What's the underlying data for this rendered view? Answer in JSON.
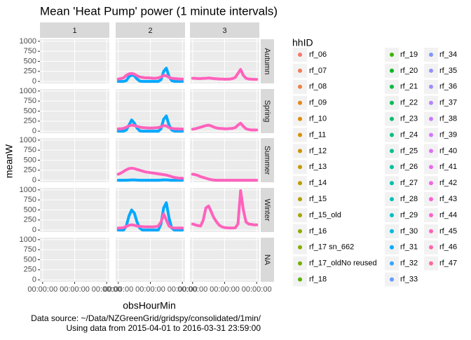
{
  "chart_data": {
    "type": "line",
    "title": "Mean 'Heat Pump' power (1 minute intervals)",
    "x_label": "obsHourMin",
    "y_label": "meanW",
    "caption": [
      "Data source: ~/Data/NZGreenGrid/gridspy/consolidated/1min/",
      "Using data from 2015-04-01 to 2016-03-31 23:59:00"
    ],
    "legend_title": "hhID",
    "col_facets": [
      "1",
      "2",
      "3"
    ],
    "row_facets": [
      "Autumn",
      "Spring",
      "Summer",
      "Winter",
      "NA"
    ],
    "xlim": [
      -1,
      25
    ],
    "xticks": [
      {
        "value": 0,
        "label": "00:00:00"
      },
      {
        "value": 12,
        "label": "00:00:00"
      },
      {
        "value": 24,
        "label": "00:00:00"
      }
    ],
    "ylim": [
      -50,
      1050
    ],
    "yticks": [
      0,
      250,
      500,
      750,
      1000
    ],
    "grid": true,
    "x": [
      0,
      1,
      2,
      3,
      4,
      5,
      6,
      7,
      8,
      9,
      10,
      11,
      12,
      13,
      14,
      15,
      16,
      17,
      18,
      19,
      20,
      21,
      22,
      23,
      24
    ],
    "series": [
      {
        "name": "rf_06",
        "color": "#F8766D"
      },
      {
        "name": "rf_07",
        "color": "#F37B59"
      },
      {
        "name": "rf_08",
        "color": "#ED8141"
      },
      {
        "name": "rf_09",
        "color": "#E7861B"
      },
      {
        "name": "rf_10",
        "color": "#E08B00"
      },
      {
        "name": "rf_11",
        "color": "#D89000"
      },
      {
        "name": "rf_12",
        "color": "#CF9400"
      },
      {
        "name": "rf_13",
        "color": "#C59900"
      },
      {
        "name": "rf_14",
        "color": "#BB9D00"
      },
      {
        "name": "rf_15",
        "color": "#AFA100"
      },
      {
        "name": "rf_15_old",
        "color": "#A3A500"
      },
      {
        "name": "rf_16",
        "color": "#95A900"
      },
      {
        "name": "rf_17 sn_662",
        "color": "#85AD00"
      },
      {
        "name": "rf_17_oldNo reused",
        "color": "#72B000"
      },
      {
        "name": "rf_18",
        "color": "#5BB300"
      },
      {
        "name": "rf_19",
        "color": "#39B600"
      },
      {
        "name": "rf_20",
        "color": "#00B81F"
      },
      {
        "name": "rf_21",
        "color": "#00BA42"
      },
      {
        "name": "rf_22",
        "color": "#00BC59"
      },
      {
        "name": "rf_23",
        "color": "#00BE6C"
      },
      {
        "name": "rf_24",
        "color": "#00BF7D"
      },
      {
        "name": "rf_25",
        "color": "#00C08D"
      },
      {
        "name": "rf_26",
        "color": "#00C19C"
      },
      {
        "name": "rf_27",
        "color": "#00C1AA"
      },
      {
        "name": "rf_28",
        "color": "#00C0B8"
      },
      {
        "name": "rf_29",
        "color": "#00BFC4"
      },
      {
        "name": "rf_30",
        "color": "#00BBDC"
      },
      {
        "name": "rf_31",
        "color": "#00A9FF"
      },
      {
        "name": "rf_32",
        "color": "#35A2FF"
      },
      {
        "name": "rf_33",
        "color": "#619CFF"
      },
      {
        "name": "rf_34",
        "color": "#7F96FF"
      },
      {
        "name": "rf_35",
        "color": "#9590FF"
      },
      {
        "name": "rf_36",
        "color": "#A58AFF"
      },
      {
        "name": "rf_37",
        "color": "#B983FF"
      },
      {
        "name": "rf_38",
        "color": "#C77CFF"
      },
      {
        "name": "rf_39",
        "color": "#D575FE"
      },
      {
        "name": "rf_40",
        "color": "#E06EF8"
      },
      {
        "name": "rf_41",
        "color": "#EB69F0"
      },
      {
        "name": "rf_42",
        "color": "#F564E3"
      },
      {
        "name": "rf_43",
        "color": "#FB61D7"
      },
      {
        "name": "rf_44",
        "color": "#FF61CC"
      },
      {
        "name": "rf_45",
        "color": "#FF62BC"
      },
      {
        "name": "rf_46",
        "color": "#FF65AC"
      },
      {
        "name": "rf_47",
        "color": "#FF6A98"
      }
    ],
    "panels": [
      {
        "column": "2",
        "row": "Autumn",
        "lines": [
          {
            "series": "rf_31",
            "values": [
              0,
              0,
              0,
              20,
              120,
              160,
              140,
              60,
              10,
              0,
              0,
              0,
              0,
              0,
              0,
              0,
              40,
              250,
              330,
              120,
              20,
              0,
              0,
              0,
              0
            ]
          },
          {
            "series": "rf_45",
            "values": [
              60,
              70,
              90,
              150,
              190,
              200,
              180,
              140,
              110,
              100,
              90,
              90,
              85,
              80,
              80,
              90,
              110,
              150,
              140,
              100,
              80,
              70,
              65,
              60,
              60
            ]
          }
        ]
      },
      {
        "column": "3",
        "row": "Autumn",
        "lines": [
          {
            "series": "rf_45",
            "values": [
              80,
              75,
              70,
              70,
              75,
              80,
              85,
              80,
              70,
              65,
              60,
              60,
              55,
              55,
              60,
              70,
              100,
              200,
              300,
              150,
              80,
              60,
              55,
              50,
              50
            ]
          }
        ]
      },
      {
        "column": "2",
        "row": "Spring",
        "lines": [
          {
            "series": "rf_31",
            "values": [
              0,
              0,
              0,
              30,
              150,
              280,
              200,
              80,
              10,
              0,
              0,
              0,
              0,
              0,
              0,
              0,
              60,
              300,
              380,
              150,
              30,
              0,
              0,
              0,
              0
            ]
          },
          {
            "series": "rf_45",
            "values": [
              60,
              60,
              70,
              100,
              130,
              150,
              140,
              120,
              100,
              90,
              85,
              80,
              80,
              80,
              85,
              90,
              110,
              140,
              130,
              90,
              70,
              60,
              60,
              55,
              55
            ]
          }
        ]
      },
      {
        "column": "3",
        "row": "Spring",
        "lines": [
          {
            "series": "rf_45",
            "values": [
              50,
              60,
              80,
              100,
              120,
              140,
              150,
              130,
              100,
              80,
              70,
              65,
              60,
              60,
              65,
              70,
              90,
              150,
              200,
              120,
              60,
              40,
              30,
              30,
              30
            ]
          }
        ]
      },
      {
        "column": "2",
        "row": "Summer",
        "lines": [
          {
            "series": "rf_31",
            "values": [
              0,
              0,
              0,
              0,
              5,
              10,
              10,
              5,
              0,
              0,
              0,
              0,
              0,
              0,
              0,
              0,
              5,
              10,
              10,
              5,
              0,
              0,
              0,
              0,
              0
            ]
          },
          {
            "series": "rf_45",
            "values": [
              150,
              180,
              220,
              260,
              290,
              300,
              290,
              270,
              250,
              230,
              210,
              200,
              190,
              180,
              170,
              160,
              150,
              140,
              130,
              110,
              90,
              70,
              60,
              50,
              50
            ]
          }
        ]
      },
      {
        "column": "3",
        "row": "Summer",
        "lines": [
          {
            "series": "rf_45",
            "values": [
              150,
              140,
              120,
              90,
              70,
              50,
              30,
              15,
              5,
              0,
              0,
              0,
              0,
              0,
              0,
              0,
              0,
              0,
              0,
              0,
              0,
              0,
              0,
              0,
              0
            ]
          }
        ]
      },
      {
        "column": "2",
        "row": "Winter",
        "lines": [
          {
            "series": "rf_31",
            "values": [
              0,
              0,
              0,
              100,
              350,
              500,
              420,
              200,
              50,
              0,
              0,
              0,
              0,
              0,
              0,
              0,
              150,
              550,
              680,
              300,
              50,
              0,
              0,
              0,
              0
            ]
          },
          {
            "series": "rf_45",
            "values": [
              50,
              50,
              60,
              90,
              120,
              130,
              120,
              100,
              90,
              85,
              80,
              80,
              80,
              80,
              85,
              100,
              200,
              400,
              250,
              100,
              60,
              50,
              50,
              50,
              50
            ]
          }
        ]
      },
      {
        "column": "3",
        "row": "Winter",
        "lines": [
          {
            "series": "rf_45",
            "values": [
              150,
              130,
              110,
              100,
              250,
              550,
              600,
              450,
              300,
              200,
              120,
              80,
              60,
              55,
              50,
              50,
              55,
              150,
              980,
              500,
              200,
              150,
              140,
              130,
              130
            ]
          }
        ]
      }
    ]
  }
}
